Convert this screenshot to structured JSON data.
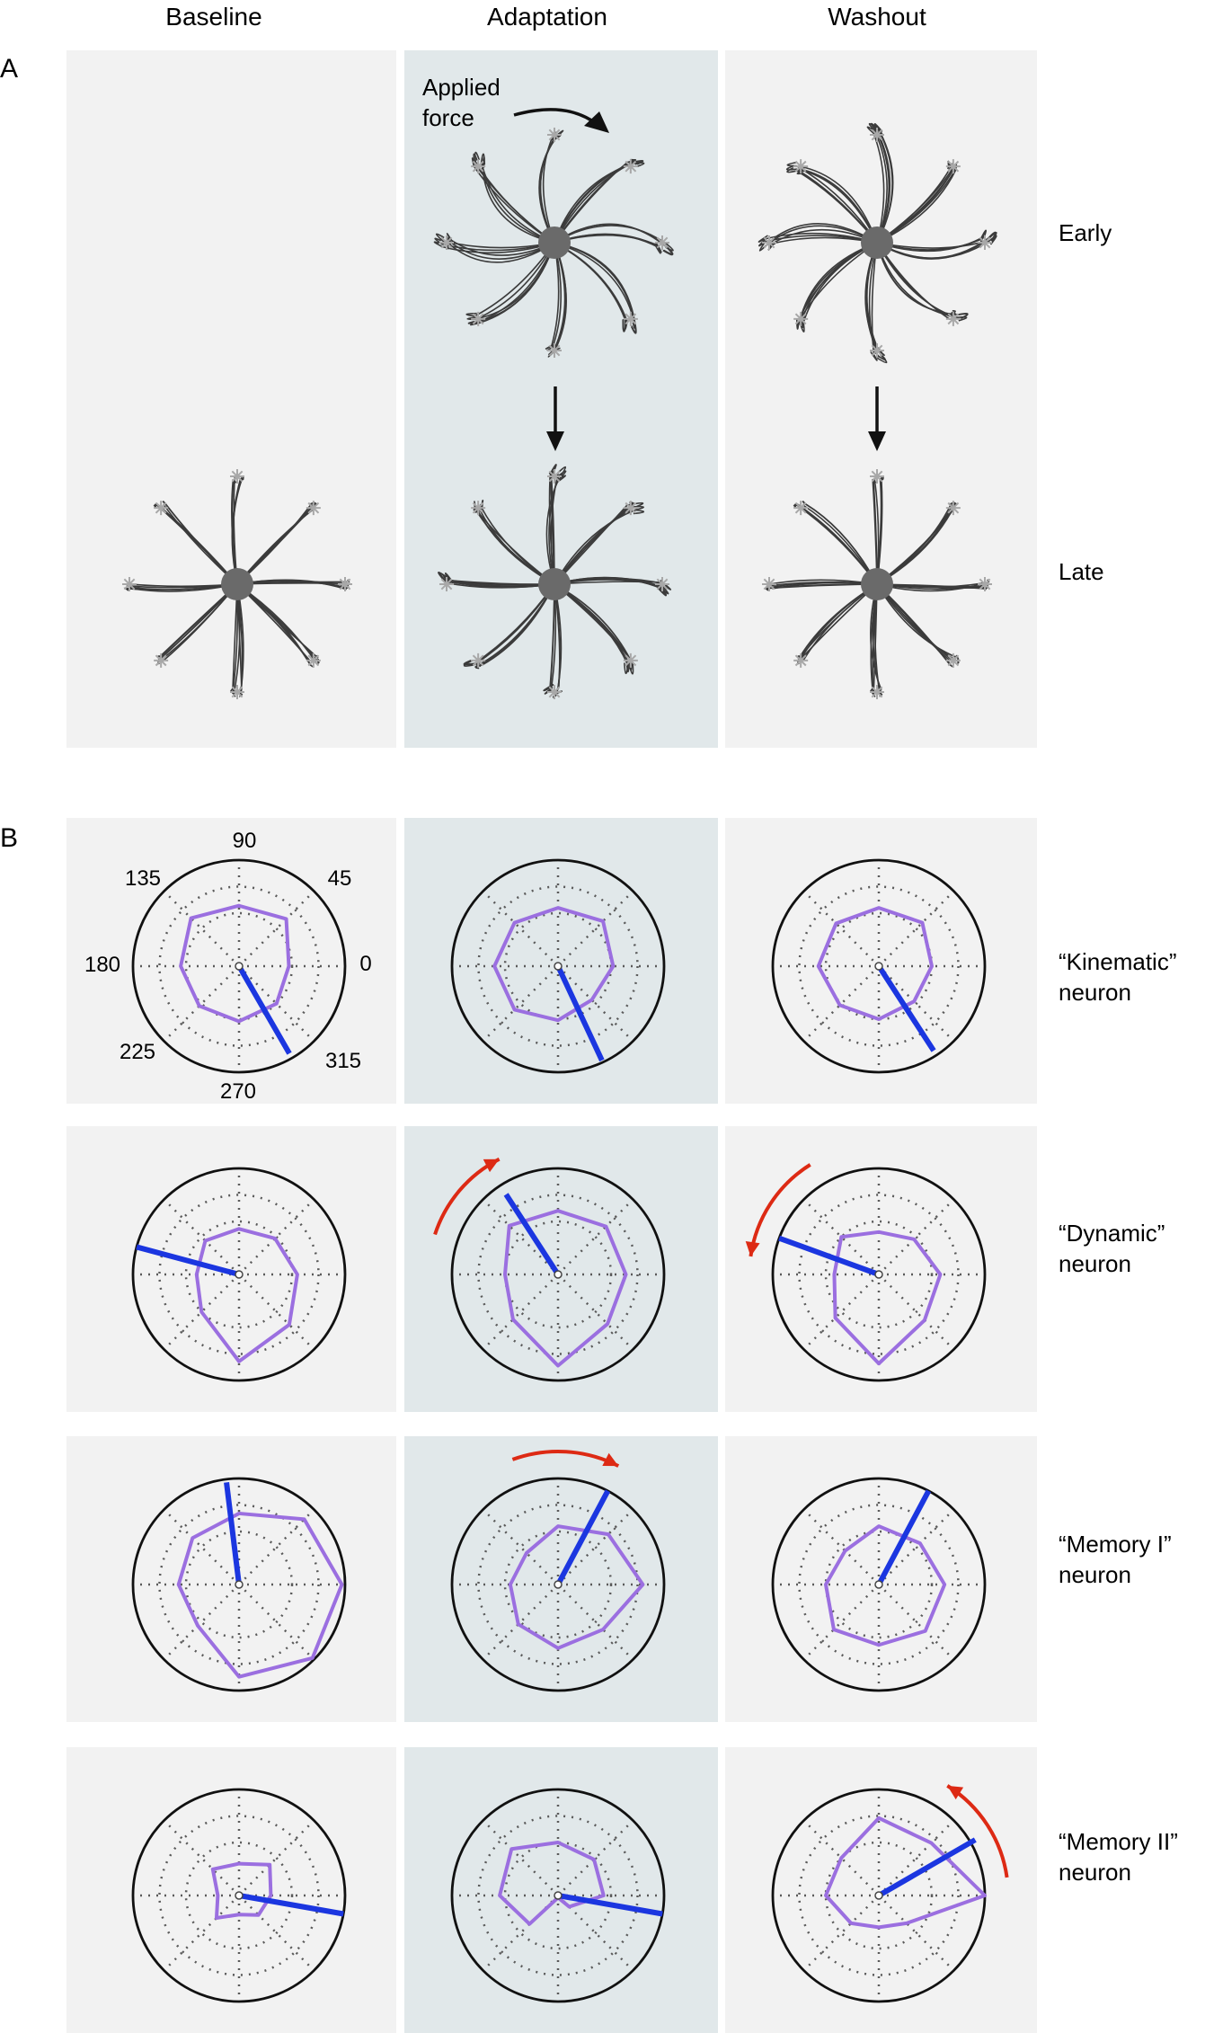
{
  "columns": [
    "Baseline",
    "Adaptation",
    "Washout"
  ],
  "panel_a": {
    "label": "A",
    "rows": [
      "Early",
      "Late"
    ],
    "applied_force_line1": "Applied",
    "applied_force_line2": "force"
  },
  "panel_b": {
    "label": "B",
    "tick_labels": [
      "90",
      "45",
      "0",
      "315",
      "270",
      "225",
      "180",
      "135"
    ],
    "neurons": [
      {
        "line1": "“Kinematic”",
        "line2": "neuron",
        "plots": [
          {
            "tuning": [
              0.57,
              0.63,
              0.47,
              0.5,
              0.52,
              0.53,
              0.55,
              0.64
            ],
            "pd_deg": 300,
            "pd_len": 0.95,
            "arrow": "none"
          },
          {
            "tuning": [
              0.55,
              0.6,
              0.52,
              0.45,
              0.51,
              0.58,
              0.6,
              0.58
            ],
            "pd_deg": 295,
            "pd_len": 0.98,
            "arrow": "none"
          },
          {
            "tuning": [
              0.55,
              0.58,
              0.5,
              0.47,
              0.5,
              0.52,
              0.57,
              0.57
            ],
            "pd_deg": 303,
            "pd_len": 0.95,
            "arrow": "none"
          }
        ]
      },
      {
        "line1": "“Dynamic”",
        "line2": "neuron",
        "plots": [
          {
            "tuning": [
              0.43,
              0.48,
              0.55,
              0.67,
              0.82,
              0.5,
              0.4,
              0.45
            ],
            "pd_deg": 165,
            "pd_len": 1.0,
            "arrow": "none"
          },
          {
            "tuning": [
              0.6,
              0.64,
              0.64,
              0.66,
              0.86,
              0.6,
              0.5,
              0.65
            ],
            "pd_deg": 123,
            "pd_len": 0.9,
            "arrow": "ccw_upper_left"
          },
          {
            "tuning": [
              0.4,
              0.47,
              0.58,
              0.61,
              0.84,
              0.58,
              0.42,
              0.5
            ],
            "pd_deg": 160,
            "pd_len": 1.0,
            "arrow": "ccw_left"
          }
        ]
      },
      {
        "line1": "“Memory I”",
        "line2": "neuron",
        "plots": [
          {
            "tuning": [
              0.67,
              0.87,
              0.97,
              0.98,
              0.87,
              0.55,
              0.57,
              0.62
            ],
            "pd_deg": 97,
            "pd_len": 0.97,
            "arrow": "none"
          },
          {
            "tuning": [
              0.55,
              0.67,
              0.8,
              0.6,
              0.6,
              0.53,
              0.45,
              0.42
            ],
            "pd_deg": 62,
            "pd_len": 1.0,
            "arrow": "cw_top"
          },
          {
            "tuning": [
              0.55,
              0.55,
              0.62,
              0.62,
              0.57,
              0.6,
              0.5,
              0.45
            ],
            "pd_deg": 62,
            "pd_len": 1.0,
            "arrow": "none"
          }
        ]
      },
      {
        "line1": "“Memory II”",
        "line2": "neuron",
        "plots": [
          {
            "tuning": [
              0.3,
              0.41,
              0.3,
              0.26,
              0.18,
              0.3,
              0.2,
              0.35
            ],
            "pd_deg": -10,
            "pd_len": 1.0,
            "arrow": "none"
          },
          {
            "tuning": [
              0.5,
              0.48,
              0.43,
              0.15,
              0.02,
              0.38,
              0.55,
              0.62
            ],
            "pd_deg": -10,
            "pd_len": 1.0,
            "arrow": "none"
          },
          {
            "tuning": [
              0.73,
              0.7,
              1.0,
              0.37,
              0.3,
              0.37,
              0.5,
              0.5
            ],
            "pd_deg": 30,
            "pd_len": 1.05,
            "arrow": "ccw_right"
          }
        ]
      }
    ]
  },
  "colors": {
    "panel_bg": "#f2f2f2",
    "adaptation_bg": "#e1e8ea",
    "tuning": "#9b6fe0",
    "preferred_direction": "#1b36e0",
    "rotation_arrow": "#dd2a14",
    "trajectory": "#3b3b3b",
    "center_disc": "#6a6a6a",
    "target_star": "#a8a8a8",
    "grid_dots": "#5a5a5a"
  },
  "icons": [
    "force-arrow-icon",
    "down-arrow-icon",
    "rotation-arrow-icon",
    "target-star-icon"
  ]
}
